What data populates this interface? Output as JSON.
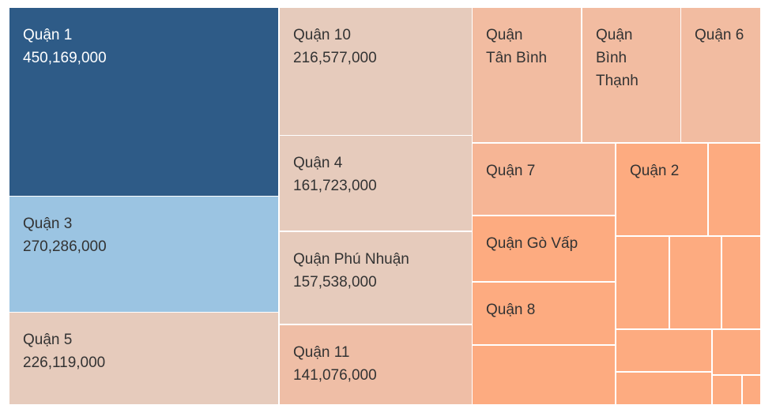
{
  "chart_data": {
    "type": "treemap",
    "categories": [
      "Quận 1",
      "Quận 3",
      "Quận 5",
      "Quận 10",
      "Quận 4",
      "Quận Phú Nhuận",
      "Quận 11",
      "Quận Tân Bình",
      "Quận Bình Thạnh",
      "Quận 6",
      "Quận 7",
      "Quận 2",
      null,
      "Quận Gò Vấp",
      "Quận 8",
      null,
      null,
      null,
      null,
      null,
      null,
      null,
      null,
      null
    ],
    "values": [
      450169000,
      270286000,
      226119000,
      216577000,
      161723000,
      157538000,
      141076000,
      129000000,
      117000000,
      94000000,
      90000000,
      74000000,
      42000000,
      82000000,
      78000000,
      74000000,
      42000000,
      41000000,
      31000000,
      35000000,
      19000000,
      27000000,
      7000000,
      4000000
    ],
    "value_labels": [
      "450,169,000",
      "270,286,000",
      "226,119,000",
      "216,577,000",
      "161,723,000",
      "157,538,000",
      "141,076,000",
      null,
      null,
      null,
      null,
      null,
      null,
      null,
      null,
      null,
      null,
      null,
      null,
      null,
      null,
      null,
      null,
      null
    ],
    "colors": [
      "#2e5b87",
      "#9bc4e2",
      "#e6cbbc",
      "#e6cbbc",
      "#e6cbbc",
      "#e6cbbc",
      "#efbea6",
      "#f2bca1",
      "#f2bca1",
      "#f2bca1",
      "#f6b595",
      "#fdab80",
      "#fdab80",
      "#fdab80",
      "#fdab80",
      "#fdab80",
      "#fdab80",
      "#fdab80",
      "#fdab80",
      "#fdab80",
      "#fdab80",
      "#fdab80",
      "#fdab80",
      "#fdab80"
    ]
  }
}
